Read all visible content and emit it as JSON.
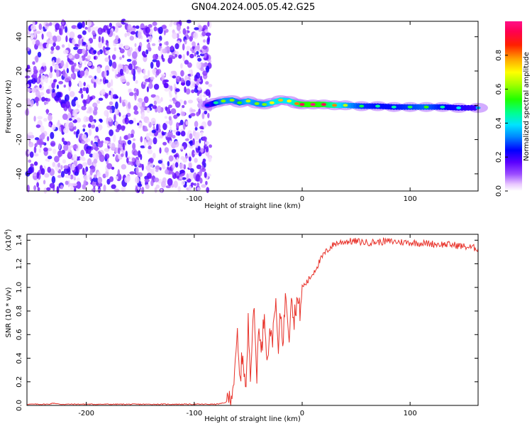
{
  "title": "GN04.2024.005.05.42.G25",
  "chart_data": [
    {
      "type": "heatmap",
      "name": "spectrogram",
      "xlabel": "Height of straight line (km)",
      "ylabel": "Frequency (Hz)",
      "xlim": [
        -255,
        163
      ],
      "ylim": [
        -50,
        49
      ],
      "x_ticks": [
        "-200",
        "-100",
        "0",
        "100"
      ],
      "y_ticks": [
        "40",
        "20",
        "0",
        "-20",
        "-40"
      ],
      "colorbar": {
        "label": "Normalized spectral amplitude",
        "range": [
          0,
          1
        ],
        "ticks": [
          "0.0",
          "0.2",
          "0.4",
          "0.6",
          "0.8"
        ]
      },
      "noise_region_x": [
        -255,
        -85
      ],
      "signal_ridge": [
        {
          "x": -88,
          "freq": 0.0,
          "amp": 0.25
        },
        {
          "x": -80,
          "freq": 1.5,
          "amp": 0.45
        },
        {
          "x": -73,
          "freq": 2.5,
          "amp": 0.6
        },
        {
          "x": -65,
          "freq": 3.0,
          "amp": 0.6
        },
        {
          "x": -58,
          "freq": 1.5,
          "amp": 0.55
        },
        {
          "x": -50,
          "freq": 2.5,
          "amp": 0.65
        },
        {
          "x": -42,
          "freq": 1.0,
          "amp": 0.6
        },
        {
          "x": -35,
          "freq": 0.5,
          "amp": 0.6
        },
        {
          "x": -28,
          "freq": 1.5,
          "amp": 0.7
        },
        {
          "x": -20,
          "freq": 3.0,
          "amp": 0.75
        },
        {
          "x": -12,
          "freq": 2.5,
          "amp": 0.7
        },
        {
          "x": -5,
          "freq": 1.0,
          "amp": 0.8
        },
        {
          "x": 0,
          "freq": 0.5,
          "amp": 0.95
        },
        {
          "x": 10,
          "freq": 0.5,
          "amp": 1.0
        },
        {
          "x": 20,
          "freq": 0.5,
          "amp": 0.95
        },
        {
          "x": 30,
          "freq": 0.0,
          "amp": 0.8
        },
        {
          "x": 40,
          "freq": 0.0,
          "amp": 0.65
        },
        {
          "x": 55,
          "freq": -0.5,
          "amp": 0.5
        },
        {
          "x": 70,
          "freq": -0.5,
          "amp": 0.45
        },
        {
          "x": 85,
          "freq": -1.0,
          "amp": 0.45
        },
        {
          "x": 100,
          "freq": -1.0,
          "amp": 0.5
        },
        {
          "x": 115,
          "freq": -1.0,
          "amp": 0.55
        },
        {
          "x": 130,
          "freq": -1.0,
          "amp": 0.45
        },
        {
          "x": 145,
          "freq": -1.5,
          "amp": 0.4
        },
        {
          "x": 163,
          "freq": -1.5,
          "amp": 0.35
        }
      ]
    },
    {
      "type": "line",
      "name": "snr",
      "xlabel": "Height of straight line (km)",
      "ylabel": "SNR (10 * v/v)",
      "y_multiplier": "(x10",
      "y_multiplier_exp": "4",
      "y_multiplier_close": ")",
      "xlim": [
        -255,
        163
      ],
      "ylim": [
        0,
        1.45
      ],
      "x_ticks": [
        "-200",
        "-100",
        "0",
        "100"
      ],
      "y_ticks": [
        "0.0",
        "0.2",
        "0.4",
        "0.6",
        "0.8",
        "1.0",
        "1.2",
        "1.4"
      ],
      "line_color": "#e8322a",
      "series": [
        {
          "x": [
            -255,
            -235,
            -230,
            -225,
            -200,
            -150,
            -100,
            -80,
            -72,
            -68,
            -65,
            -62,
            -60,
            -58,
            -55,
            -52,
            -50,
            -48,
            -45,
            -42,
            -40,
            -38,
            -35,
            -32,
            -30,
            -28,
            -25,
            -22,
            -20,
            -18,
            -15,
            -12,
            -10,
            -8,
            -5,
            -2,
            0,
            5,
            10,
            15,
            20,
            25,
            30,
            35,
            40,
            50,
            60,
            80,
            100,
            120,
            140,
            155,
            163
          ],
          "y": [
            0.01,
            0.01,
            0.02,
            0.01,
            0.01,
            0.01,
            0.01,
            0.01,
            0.02,
            0.05,
            0.12,
            0.3,
            0.6,
            0.2,
            0.45,
            0.1,
            0.7,
            0.3,
            0.85,
            0.25,
            0.75,
            0.4,
            0.8,
            0.35,
            0.7,
            0.5,
            0.9,
            0.45,
            0.8,
            0.55,
            0.95,
            0.6,
            1.0,
            0.7,
            0.9,
            0.8,
            1.0,
            1.05,
            1.12,
            1.2,
            1.28,
            1.33,
            1.37,
            1.38,
            1.39,
            1.39,
            1.38,
            1.39,
            1.38,
            1.37,
            1.36,
            1.34,
            1.33
          ]
        }
      ]
    }
  ]
}
